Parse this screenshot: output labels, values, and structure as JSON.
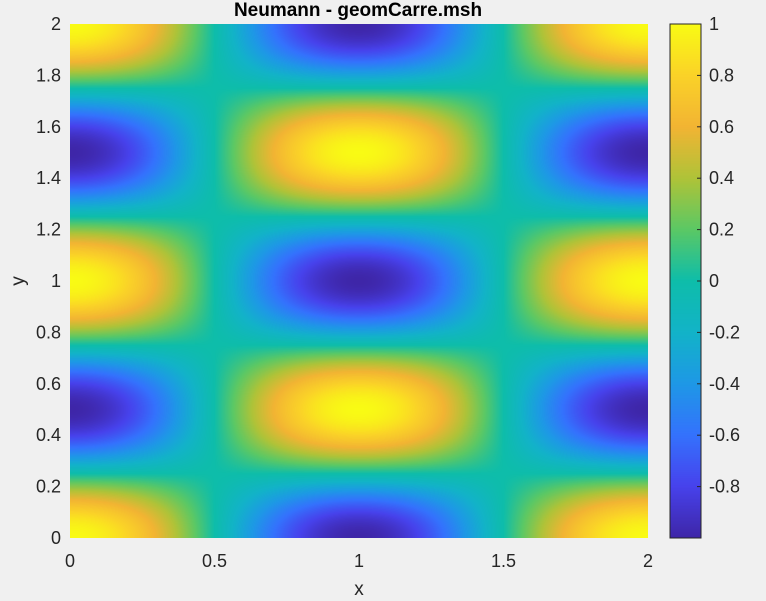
{
  "chart_data": {
    "type": "heatmap",
    "title": "Neumann - geomCarre.msh",
    "xlabel": "x",
    "ylabel": "y",
    "xlim": [
      0,
      2
    ],
    "ylim": [
      0,
      2
    ],
    "x_ticks": [
      "0",
      "0.5",
      "1",
      "1.5",
      "2"
    ],
    "x_tick_values": [
      0,
      0.5,
      1,
      1.5,
      2
    ],
    "y_ticks": [
      "0",
      "0.2",
      "0.4",
      "0.6",
      "0.8",
      "1",
      "1.2",
      "1.4",
      "1.6",
      "1.8",
      "2"
    ],
    "y_tick_values": [
      0,
      0.2,
      0.4,
      0.6,
      0.8,
      1,
      1.2,
      1.4,
      1.6,
      1.8,
      2
    ],
    "colorbar": {
      "range": [
        -1,
        1
      ],
      "ticks": [
        "1",
        "0.8",
        "0.6",
        "0.4",
        "0.2",
        "0",
        "-0.2",
        "-0.4",
        "-0.6",
        "-0.8"
      ],
      "tick_values": [
        1,
        0.8,
        0.6,
        0.4,
        0.2,
        0,
        -0.2,
        -0.4,
        -0.6,
        -0.8
      ],
      "colormap": "parula"
    },
    "grid": false,
    "field_samples": {
      "note_values": "u(x,y) sampled values at selected points",
      "points": [
        {
          "x": 0,
          "y": 0,
          "u": 1
        },
        {
          "x": 1,
          "y": 0,
          "u": -1
        },
        {
          "x": 2,
          "y": 0,
          "u": 1
        },
        {
          "x": 0,
          "y": 0.5,
          "u": -1
        },
        {
          "x": 1,
          "y": 0.5,
          "u": 1
        },
        {
          "x": 2,
          "y": 0.5,
          "u": -1
        },
        {
          "x": 0,
          "y": 1,
          "u": 1
        },
        {
          "x": 1,
          "y": 1,
          "u": -1
        },
        {
          "x": 2,
          "y": 1,
          "u": 1
        },
        {
          "x": 0,
          "y": 1.5,
          "u": -1
        },
        {
          "x": 1,
          "y": 1.5,
          "u": 1
        },
        {
          "x": 2,
          "y": 1.5,
          "u": -1
        },
        {
          "x": 0,
          "y": 2,
          "u": 1
        },
        {
          "x": 1,
          "y": 2,
          "u": -1
        },
        {
          "x": 2,
          "y": 2,
          "u": 1
        },
        {
          "x": 0.5,
          "y": 0.5,
          "u": 0
        },
        {
          "x": 1,
          "y": 0.25,
          "u": 0
        },
        {
          "x": 1.5,
          "y": 1,
          "u": 0
        }
      ]
    }
  }
}
